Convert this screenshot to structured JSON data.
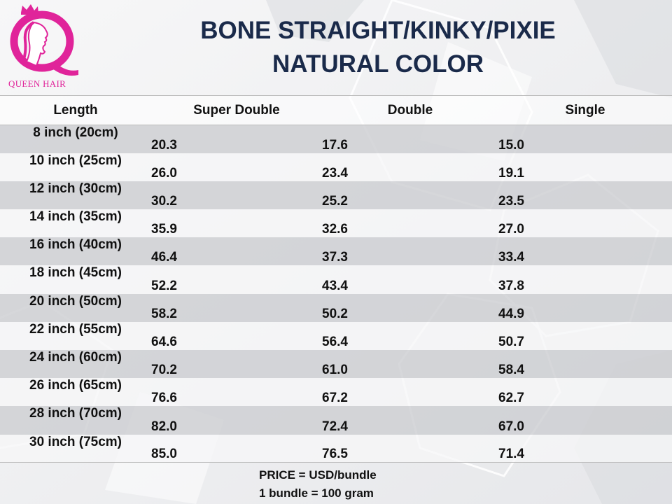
{
  "brand": {
    "name": "QUEEN HAIR",
    "logo_letter": "Q",
    "colors": {
      "primary": "#e0249a",
      "title": "#1a2a4a"
    }
  },
  "title": {
    "line1": "BONE STRAIGHT/KINKY/PIXIE",
    "line2": "NATURAL COLOR"
  },
  "table": {
    "headers": [
      "Length",
      "Super Double",
      "Double",
      "Single"
    ],
    "rows": [
      [
        "8 inch (20cm)",
        "20.3",
        "17.6",
        "15.0"
      ],
      [
        "10 inch (25cm)",
        "26.0",
        "23.4",
        "19.1"
      ],
      [
        "12 inch (30cm)",
        "30.2",
        "25.2",
        "23.5"
      ],
      [
        "14 inch (35cm)",
        "35.9",
        "32.6",
        "27.0"
      ],
      [
        "16 inch (40cm)",
        "46.4",
        "37.3",
        "33.4"
      ],
      [
        "18 inch (45cm)",
        "52.2",
        "43.4",
        "37.8"
      ],
      [
        "20 inch (50cm)",
        "58.2",
        "50.2",
        "44.9"
      ],
      [
        "22 inch (55cm)",
        "64.6",
        "56.4",
        "50.7"
      ],
      [
        "24 inch (60cm)",
        "70.2",
        "61.0",
        "58.4"
      ],
      [
        "26 inch (65cm)",
        "76.6",
        "67.2",
        "62.7"
      ],
      [
        "28 inch (70cm)",
        "82.0",
        "72.4",
        "67.0"
      ],
      [
        "30 inch (75cm)",
        "85.0",
        "76.5",
        "71.4"
      ]
    ]
  },
  "notes": {
    "price": "PRICE = USD/bundle",
    "bundle": "1 bundle = 100 gram"
  }
}
